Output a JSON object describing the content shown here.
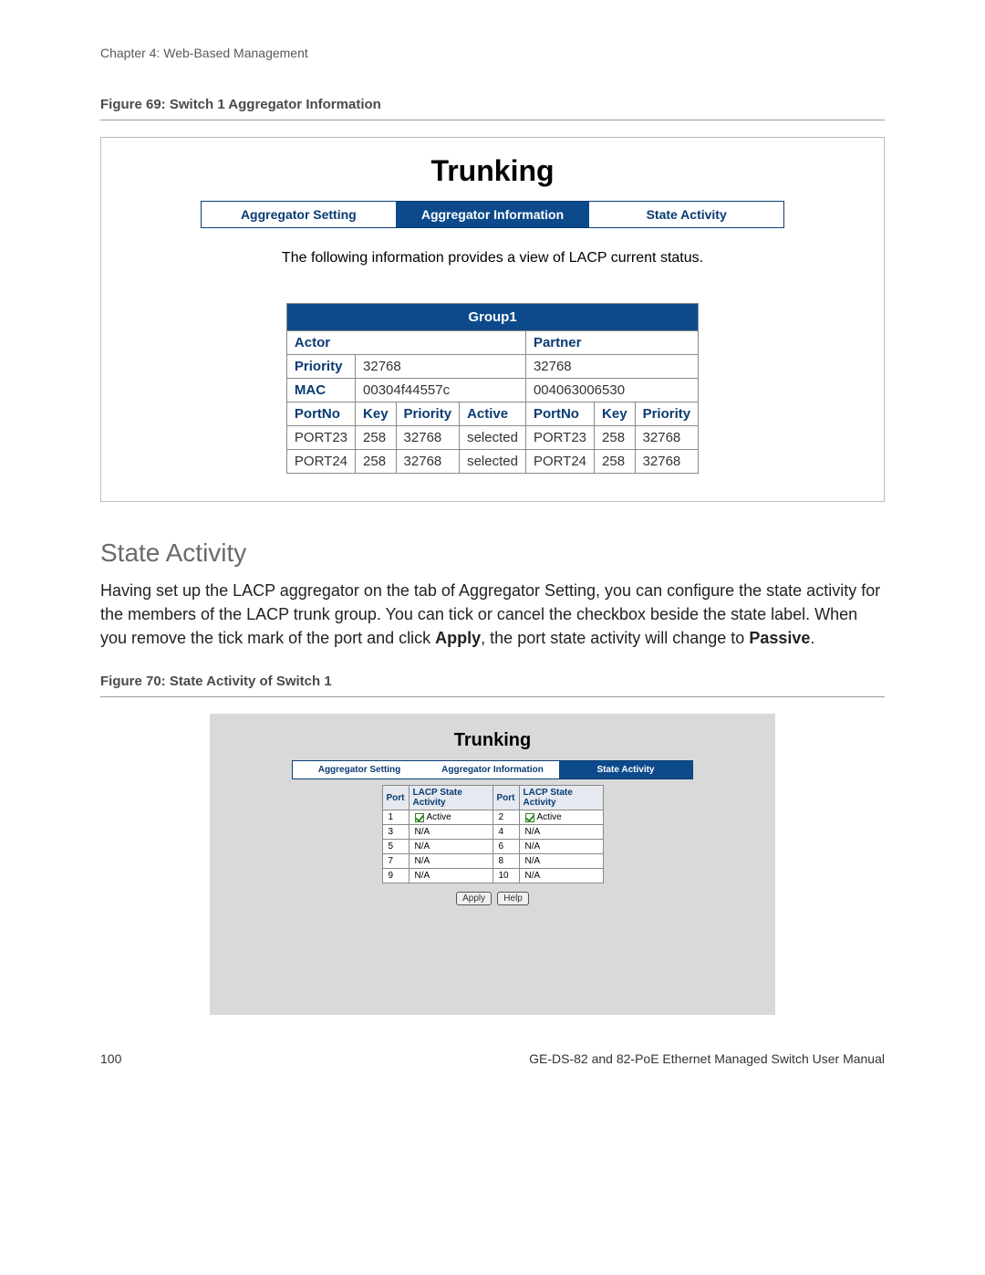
{
  "chapter_header": "Chapter 4: Web-Based Management",
  "figure69": {
    "caption": "Figure 69: Switch 1 Aggregator Information",
    "title": "Trunking",
    "tabs": {
      "setting": "Aggregator Setting",
      "info": "Aggregator Information",
      "state": "State Activity"
    },
    "active_tab": "info",
    "info_text": "The following information provides a view of LACP current status.",
    "table": {
      "group_header": "Group1",
      "sections": {
        "actor": "Actor",
        "partner": "Partner"
      },
      "priority_label": "Priority",
      "mac_label": "MAC",
      "actor_priority": "32768",
      "partner_priority": "32768",
      "actor_mac": "00304f44557c",
      "partner_mac": "004063006530",
      "col_headers": {
        "portno": "PortNo",
        "key": "Key",
        "priority": "Priority",
        "active": "Active"
      },
      "rows": [
        {
          "a_port": "PORT23",
          "a_key": "258",
          "a_pri": "32768",
          "a_act": "selected",
          "p_port": "PORT23",
          "p_key": "258",
          "p_pri": "32768"
        },
        {
          "a_port": "PORT24",
          "a_key": "258",
          "a_pri": "32768",
          "a_act": "selected",
          "p_port": "PORT24",
          "p_key": "258",
          "p_pri": "32768"
        }
      ]
    }
  },
  "state_activity": {
    "heading": "State Activity",
    "para_pre": "Having set up the LACP aggregator on the tab of Aggregator Setting, you can configure the state activity for the members of the LACP trunk group. You can tick or cancel the checkbox beside the state label. When you remove the tick mark of the port and click ",
    "apply_word": "Apply",
    "para_mid": ", the port state activity will change to ",
    "passive_word": "Passive",
    "para_end": "."
  },
  "figure70": {
    "caption": "Figure 70: State Activity of Switch 1",
    "title": "Trunking",
    "tabs": {
      "setting": "Aggregator Setting",
      "info": "Aggregator Information",
      "state": "State Activity"
    },
    "active_tab": "state",
    "headers": {
      "port": "Port",
      "lacp": "LACP State Activity"
    },
    "active_label": "Active",
    "na_label": "N/A",
    "rows": [
      {
        "p1": "1",
        "s1": "active",
        "p2": "2",
        "s2": "active"
      },
      {
        "p1": "3",
        "s1": "na",
        "p2": "4",
        "s2": "na"
      },
      {
        "p1": "5",
        "s1": "na",
        "p2": "6",
        "s2": "na"
      },
      {
        "p1": "7",
        "s1": "na",
        "p2": "8",
        "s2": "na"
      },
      {
        "p1": "9",
        "s1": "na",
        "p2": "10",
        "s2": "na"
      }
    ],
    "buttons": {
      "apply": "Apply",
      "help": "Help"
    }
  },
  "footer": {
    "page": "100",
    "manual": "GE-DS-82 and 82-PoE Ethernet Managed Switch User Manual"
  },
  "colors": {
    "tab_active_bg": "#0d4a8c",
    "tab_text": "#0a3b73",
    "border": "#8a8a8a"
  }
}
